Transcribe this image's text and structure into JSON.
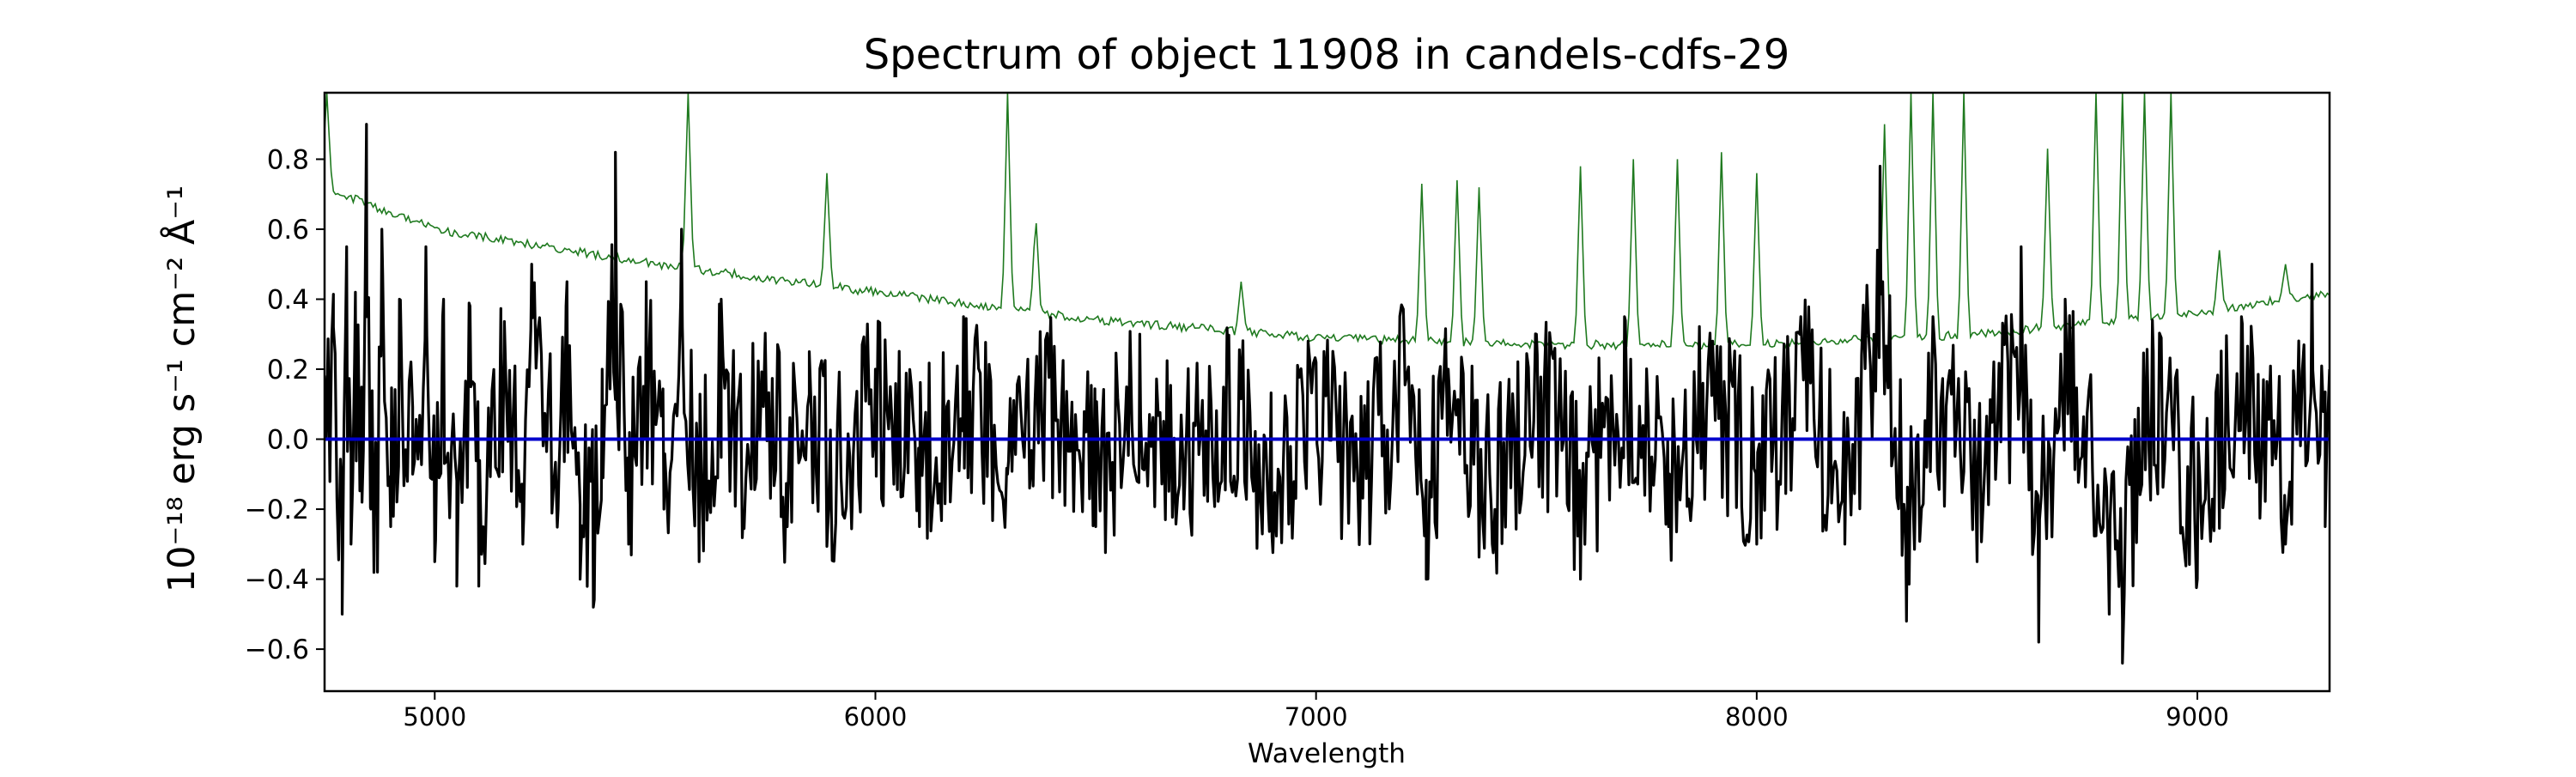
{
  "chart_data": {
    "type": "line",
    "title": "Spectrum of object 11908 in candels-cdfs-29",
    "xlabel": "Wavelength",
    "ylabel": "10⁻¹⁸ erg s⁻¹ cm⁻² Å⁻¹",
    "xlim": [
      4750,
      9300
    ],
    "ylim": [
      -0.72,
      0.99
    ],
    "x_ticks": [
      5000,
      6000,
      7000,
      8000,
      9000
    ],
    "y_ticks": [
      -0.6,
      -0.4,
      -0.2,
      0.0,
      0.2,
      0.4,
      0.6,
      0.8
    ],
    "y_tick_labels": [
      "−0.6",
      "−0.4",
      "−0.2",
      "0.0",
      "0.2",
      "0.4",
      "0.6",
      "0.8"
    ],
    "grid": false,
    "legend": "none",
    "series": [
      {
        "color": "#000000",
        "role": "flux",
        "description": "noisy flux spectrum oscillating around zero with an amplitude of roughly ±0.3–0.5",
        "points": [
          [
            4750,
            0.18
          ],
          [
            4770,
            0.32
          ],
          [
            4790,
            -0.5
          ],
          [
            4800,
            0.55
          ],
          [
            4810,
            -0.3
          ],
          [
            4820,
            0.42
          ],
          [
            4835,
            -0.18
          ],
          [
            4845,
            0.9
          ],
          [
            4855,
            -0.2
          ],
          [
            4870,
            -0.38
          ],
          [
            4880,
            0.6
          ],
          [
            4900,
            -0.25
          ],
          [
            4920,
            0.4
          ],
          [
            4950,
            -0.1
          ],
          [
            4980,
            0.55
          ],
          [
            5000,
            -0.35
          ],
          [
            5020,
            0.4
          ],
          [
            5050,
            -0.42
          ],
          [
            5080,
            0.38
          ],
          [
            5100,
            -0.42
          ],
          [
            5150,
            0.25
          ],
          [
            5200,
            -0.3
          ],
          [
            5220,
            0.5
          ],
          [
            5280,
            -0.2
          ],
          [
            5300,
            0.45
          ],
          [
            5330,
            -0.4
          ],
          [
            5360,
            -0.48
          ],
          [
            5380,
            0.2
          ],
          [
            5410,
            0.82
          ],
          [
            5440,
            -0.3
          ],
          [
            5480,
            0.45
          ],
          [
            5520,
            -0.2
          ],
          [
            5560,
            0.6
          ],
          [
            5600,
            -0.35
          ],
          [
            5650,
            0.4
          ],
          [
            5700,
            -0.22
          ],
          [
            5750,
            0.3
          ],
          [
            5800,
            -0.25
          ],
          [
            5850,
            0.25
          ],
          [
            5900,
            -0.2
          ],
          [
            6000,
            0.2
          ],
          [
            6100,
            -0.25
          ],
          [
            6200,
            0.35
          ],
          [
            6300,
            -0.1
          ],
          [
            6400,
            0.2
          ],
          [
            6500,
            -0.25
          ],
          [
            6600,
            0.3
          ],
          [
            6700,
            -0.2
          ],
          [
            6800,
            0.25
          ],
          [
            6900,
            -0.28
          ],
          [
            7000,
            0.22
          ],
          [
            7100,
            -0.2
          ],
          [
            7200,
            0.28
          ],
          [
            7250,
            -0.4
          ],
          [
            7300,
            0.2
          ],
          [
            7400,
            -0.3
          ],
          [
            7500,
            0.3
          ],
          [
            7600,
            -0.4
          ],
          [
            7700,
            0.35
          ],
          [
            7800,
            -0.25
          ],
          [
            7900,
            0.28
          ],
          [
            8000,
            -0.3
          ],
          [
            8100,
            0.35
          ],
          [
            8200,
            -0.3
          ],
          [
            8280,
            0.78
          ],
          [
            8340,
            -0.52
          ],
          [
            8400,
            0.35
          ],
          [
            8500,
            -0.35
          ],
          [
            8600,
            0.55
          ],
          [
            8640,
            -0.58
          ],
          [
            8700,
            0.4
          ],
          [
            8800,
            -0.5
          ],
          [
            8830,
            -0.64
          ],
          [
            8900,
            0.25
          ],
          [
            9000,
            -0.4
          ],
          [
            9100,
            0.35
          ],
          [
            9200,
            -0.3
          ],
          [
            9260,
            0.5
          ],
          [
            9290,
            -0.25
          ],
          [
            9300,
            0.2
          ]
        ]
      },
      {
        "color": "#1f7a1f",
        "role": "noise / sky",
        "description": "thin green curve: smooth declining continuum with many narrow sky-line spikes at red wavelengths",
        "continuum": [
          [
            4750,
            0.72
          ],
          [
            5000,
            0.6
          ],
          [
            5500,
            0.5
          ],
          [
            6000,
            0.42
          ],
          [
            6500,
            0.34
          ],
          [
            7000,
            0.29
          ],
          [
            7500,
            0.27
          ],
          [
            8000,
            0.27
          ],
          [
            8500,
            0.3
          ],
          [
            9000,
            0.36
          ],
          [
            9300,
            0.42
          ]
        ],
        "spikes": [
          [
            4755,
            0.99
          ],
          [
            5575,
            0.99
          ],
          [
            5890,
            0.76
          ],
          [
            6300,
            0.99
          ],
          [
            6364,
            0.64
          ],
          [
            6830,
            0.45
          ],
          [
            7240,
            0.73
          ],
          [
            7320,
            0.74
          ],
          [
            7370,
            0.72
          ],
          [
            7600,
            0.78
          ],
          [
            7720,
            0.8
          ],
          [
            7820,
            0.8
          ],
          [
            7920,
            0.82
          ],
          [
            8000,
            0.76
          ],
          [
            8290,
            0.9
          ],
          [
            8350,
            0.99
          ],
          [
            8400,
            0.99
          ],
          [
            8470,
            0.99
          ],
          [
            8660,
            0.83
          ],
          [
            8770,
            0.99
          ],
          [
            8830,
            0.99
          ],
          [
            8880,
            0.99
          ],
          [
            8940,
            0.99
          ],
          [
            9050,
            0.54
          ],
          [
            9200,
            0.5
          ]
        ]
      },
      {
        "color": "#0000cc",
        "role": "zero line",
        "points": [
          [
            4750,
            0.0
          ],
          [
            9300,
            0.0
          ]
        ]
      }
    ]
  }
}
